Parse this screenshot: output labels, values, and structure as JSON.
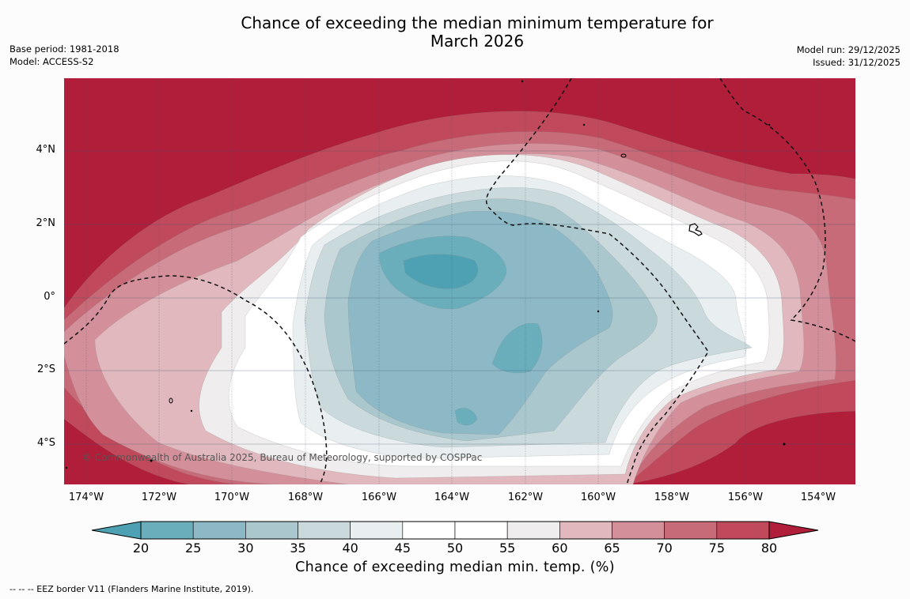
{
  "header": {
    "title_line1": "Chance of exceeding the median minimum temperature for",
    "title_line2": "March 2026",
    "base_period": "Base period: 1981-2018",
    "model": "Model: ACCESS-S2",
    "model_run": "Model run: 29/12/2025",
    "issued": "Issued: 31/12/2025"
  },
  "map": {
    "lat_labels": [
      "4°N",
      "2°N",
      "0°",
      "2°S",
      "4°S"
    ],
    "lon_labels": [
      "174°W",
      "172°W",
      "170°W",
      "168°W",
      "166°W",
      "164°W",
      "162°W",
      "160°W",
      "158°W",
      "156°W",
      "154°W"
    ],
    "copyright": "© Commonwealth of Australia 2025, Bureau of Meteorology, supported by COSPPac"
  },
  "colorbar": {
    "ticks": [
      "20",
      "25",
      "30",
      "35",
      "40",
      "45",
      "50",
      "55",
      "60",
      "65",
      "70",
      "75",
      "80"
    ],
    "label": "Chance of exceeding median min. temp. (%)",
    "colors": {
      "below20": "#4ea1b2",
      "c20_25": "#6aaebc",
      "c25_30": "#8db9c6",
      "c30_35": "#a9c7cd",
      "c35_40": "#c9d9dc",
      "c40_45": "#e9eff1",
      "c45_55": "#ffffff",
      "c55_60": "#efeded",
      "c60_65": "#e0b8bd",
      "c65_70": "#d4909a",
      "c70_75": "#c86b79",
      "c75_80": "#c04a5b",
      "above80": "#b11e3a"
    }
  },
  "footer": {
    "legend": "--  --  -- EEZ border V11 (Flanders Marine Institute, 2019)."
  }
}
